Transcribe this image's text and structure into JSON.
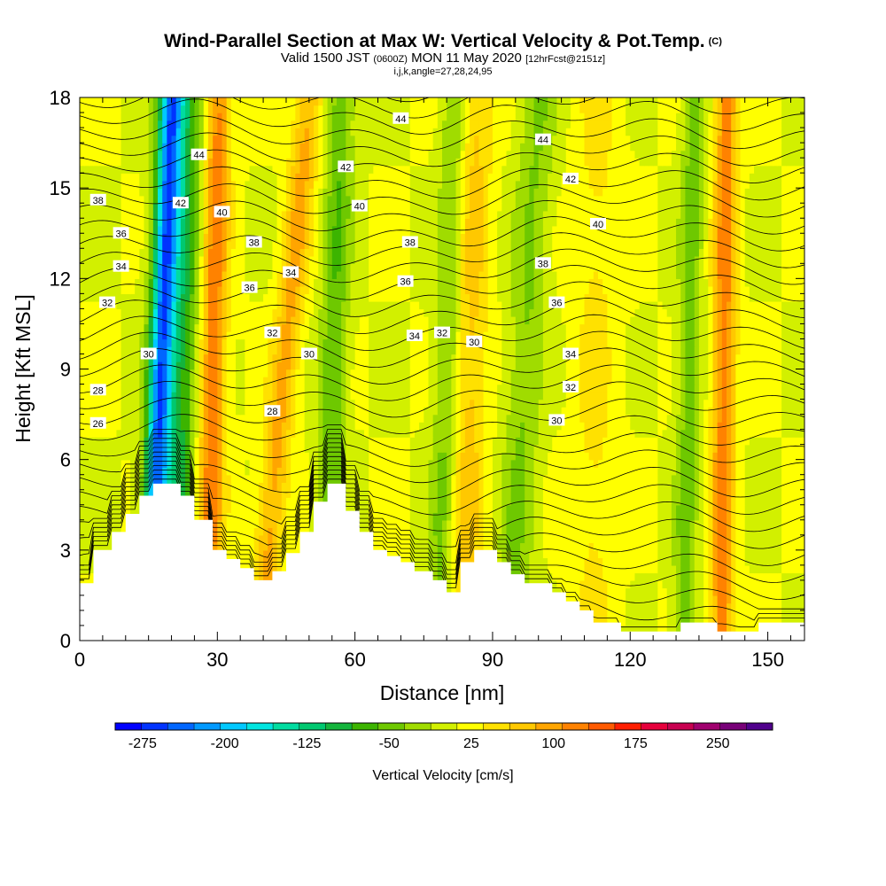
{
  "header": {
    "title": "Wind-Parallel Section at Max W: Vertical Velocity & Pot.Temp.",
    "copyright": "(C)",
    "valid_prefix": "Valid 1500 JST",
    "valid_utc": "(0600Z)",
    "valid_date": "MON 11 May 2020",
    "forecast": "[12hrFcst@2151z]",
    "indices": "i,j,k,angle=27,28,24,95"
  },
  "chart_data": {
    "type": "heatmap",
    "xlabel": "Distance [nm]",
    "ylabel": "Height [Kft MSL]",
    "xlim": [
      0,
      158
    ],
    "ylim": [
      0,
      18
    ],
    "x_ticks": [
      0,
      30,
      60,
      90,
      120,
      150
    ],
    "y_ticks": [
      0,
      3,
      6,
      9,
      12,
      15,
      18
    ],
    "grid": false,
    "colorbar": {
      "title": "Vertical Velocity [cm/s]",
      "placement": "bottom",
      "labels": [
        "-275",
        "-200",
        "-125",
        "-50",
        "25",
        "100",
        "175",
        "250"
      ],
      "label_values": [
        -275,
        -200,
        -125,
        -50,
        25,
        100,
        175,
        250
      ],
      "range": [
        -300,
        300
      ],
      "colors": [
        "#0000ff",
        "#0033ff",
        "#0066ff",
        "#0099ff",
        "#00c8ff",
        "#00e5e0",
        "#00dca0",
        "#00c870",
        "#14b43c",
        "#3cb400",
        "#6ec800",
        "#a0dc00",
        "#d2f000",
        "#ffff00",
        "#ffe100",
        "#ffc800",
        "#ffa500",
        "#ff8200",
        "#ff5a00",
        "#ff1e00",
        "#e6003c",
        "#c80050",
        "#a0006e",
        "#780078",
        "#50008c"
      ]
    },
    "terrain": [
      [
        0,
        1.9
      ],
      [
        3,
        1.9
      ],
      [
        3,
        3
      ],
      [
        7,
        3
      ],
      [
        7,
        3.6
      ],
      [
        10,
        3.6
      ],
      [
        10,
        4.2
      ],
      [
        13,
        4.2
      ],
      [
        13,
        4.8
      ],
      [
        16,
        4.8
      ],
      [
        16,
        5.2
      ],
      [
        22,
        5.2
      ],
      [
        22,
        4.8
      ],
      [
        25,
        4.8
      ],
      [
        25,
        4
      ],
      [
        29,
        4
      ],
      [
        29,
        3
      ],
      [
        32,
        3
      ],
      [
        32,
        2.7
      ],
      [
        35,
        2.7
      ],
      [
        35,
        2.4
      ],
      [
        38,
        2.4
      ],
      [
        38,
        2
      ],
      [
        42,
        2
      ],
      [
        42,
        2.3
      ],
      [
        45,
        2.3
      ],
      [
        45,
        2.9
      ],
      [
        48,
        2.9
      ],
      [
        48,
        3.6
      ],
      [
        51,
        3.6
      ],
      [
        51,
        4.6
      ],
      [
        54,
        4.6
      ],
      [
        54,
        5.2
      ],
      [
        58,
        5.2
      ],
      [
        58,
        4.3
      ],
      [
        61,
        4.3
      ],
      [
        61,
        3.6
      ],
      [
        64,
        3.6
      ],
      [
        64,
        3
      ],
      [
        67,
        3
      ],
      [
        67,
        2.8
      ],
      [
        70,
        2.8
      ],
      [
        70,
        2.6
      ],
      [
        73,
        2.6
      ],
      [
        73,
        2.3
      ],
      [
        77,
        2.3
      ],
      [
        77,
        2
      ],
      [
        80,
        2
      ],
      [
        80,
        1.6
      ],
      [
        83,
        1.6
      ],
      [
        83,
        2.6
      ],
      [
        86,
        2.6
      ],
      [
        86,
        3
      ],
      [
        91,
        3
      ],
      [
        91,
        2.6
      ],
      [
        94,
        2.6
      ],
      [
        94,
        2.2
      ],
      [
        97,
        2.2
      ],
      [
        97,
        1.9
      ],
      [
        103,
        1.9
      ],
      [
        103,
        1.6
      ],
      [
        106,
        1.6
      ],
      [
        106,
        1.3
      ],
      [
        109,
        1.3
      ],
      [
        109,
        1
      ],
      [
        112,
        1
      ],
      [
        112,
        0.6
      ],
      [
        118,
        0.6
      ],
      [
        118,
        0.3
      ],
      [
        131,
        0.3
      ],
      [
        131,
        0.6
      ],
      [
        139,
        0.6
      ],
      [
        139,
        0.3
      ],
      [
        148,
        0.3
      ],
      [
        148,
        0.6
      ],
      [
        158,
        0.6
      ]
    ],
    "field_bands": [
      {
        "center": [
          16,
          20
        ],
        "slope": 0.05,
        "width": 2.5,
        "value": -200
      },
      {
        "center": [
          20,
          23
        ],
        "slope": 0.06,
        "width": 5,
        "value": -110
      },
      {
        "center": [
          28,
          30
        ],
        "slope": 0.04,
        "width": 3,
        "value": 120
      },
      {
        "center": [
          41,
          50
        ],
        "slope": 0.07,
        "width": 3,
        "value": 80
      },
      {
        "center": [
          54,
          57
        ],
        "slope": 0.05,
        "width": 3,
        "value": -70
      },
      {
        "center": [
          79,
          82
        ],
        "slope": 0.04,
        "width": 3,
        "value": -60
      },
      {
        "center": [
          84,
          86
        ],
        "slope": 0.03,
        "width": 4,
        "value": 60
      },
      {
        "center": [
          95,
          100
        ],
        "slope": 0.03,
        "width": 4,
        "value": -50
      },
      {
        "center": [
          112,
          113
        ],
        "slope": 0.02,
        "width": 5,
        "value": 30
      },
      {
        "center": [
          132,
          134
        ],
        "slope": 0.02,
        "width": 2.5,
        "value": -60
      },
      {
        "center": [
          140,
          141
        ],
        "slope": 0.01,
        "width": 2.5,
        "value": 110
      }
    ],
    "theta_labels": [
      {
        "value": "26",
        "x": 4,
        "y": 7.2
      },
      {
        "value": "28",
        "x": 4,
        "y": 8.3
      },
      {
        "value": "30",
        "x": 15,
        "y": 9.5
      },
      {
        "value": "32",
        "x": 6,
        "y": 11.2
      },
      {
        "value": "34",
        "x": 9,
        "y": 12.4
      },
      {
        "value": "36",
        "x": 9,
        "y": 13.5
      },
      {
        "value": "38",
        "x": 4,
        "y": 14.6
      },
      {
        "value": "42",
        "x": 22,
        "y": 14.5
      },
      {
        "value": "44",
        "x": 26,
        "y": 16.1
      },
      {
        "value": "40",
        "x": 31,
        "y": 14.2
      },
      {
        "value": "38",
        "x": 38,
        "y": 13.2
      },
      {
        "value": "36",
        "x": 37,
        "y": 11.7
      },
      {
        "value": "34",
        "x": 46,
        "y": 12.2
      },
      {
        "value": "32",
        "x": 42,
        "y": 10.2
      },
      {
        "value": "28",
        "x": 42,
        "y": 7.6
      },
      {
        "value": "30",
        "x": 50,
        "y": 9.5
      },
      {
        "value": "42",
        "x": 58,
        "y": 15.7
      },
      {
        "value": "40",
        "x": 61,
        "y": 14.4
      },
      {
        "value": "44",
        "x": 70,
        "y": 17.3
      },
      {
        "value": "38",
        "x": 72,
        "y": 13.2
      },
      {
        "value": "36",
        "x": 71,
        "y": 11.9
      },
      {
        "value": "34",
        "x": 73,
        "y": 10.1
      },
      {
        "value": "32",
        "x": 79,
        "y": 10.2
      },
      {
        "value": "30",
        "x": 86,
        "y": 9.9
      },
      {
        "value": "44",
        "x": 101,
        "y": 16.6
      },
      {
        "value": "42",
        "x": 107,
        "y": 15.3
      },
      {
        "value": "40",
        "x": 113,
        "y": 13.8
      },
      {
        "value": "38",
        "x": 101,
        "y": 12.5
      },
      {
        "value": "36",
        "x": 104,
        "y": 11.2
      },
      {
        "value": "34",
        "x": 107,
        "y": 9.5
      },
      {
        "value": "32",
        "x": 107,
        "y": 8.4
      },
      {
        "value": "30",
        "x": 104,
        "y": 7.3
      }
    ]
  }
}
